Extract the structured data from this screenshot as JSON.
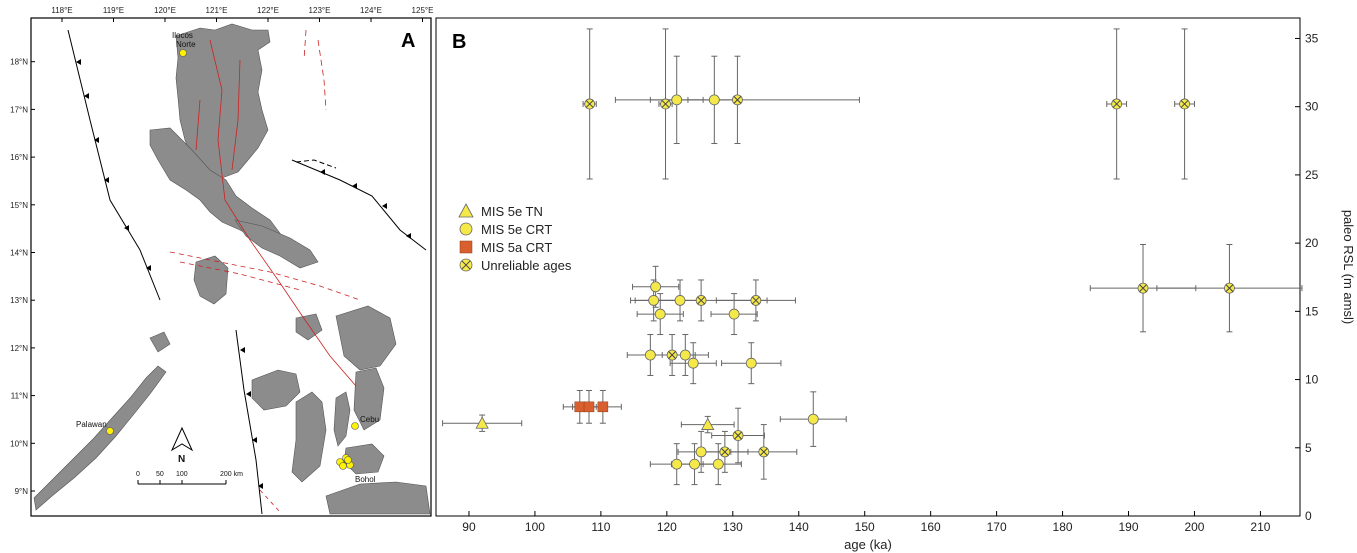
{
  "map_panel": {
    "panel_label": "A",
    "lon_ticks": [
      118,
      119,
      120,
      121,
      122,
      123,
      124,
      125
    ],
    "lat_ticks": [
      9,
      10,
      11,
      12,
      13,
      14,
      15,
      16,
      17,
      18
    ],
    "lon_suffix": "°E",
    "lat_suffix": "°N",
    "places": [
      "Ilocos Norte",
      "Palawan",
      "Cebu",
      "Bohol"
    ],
    "place_line1": "Ilocos",
    "place_line2": "Norte",
    "north_label": "N",
    "scale_ticks": [
      "0",
      "50",
      "100",
      "200 km"
    ],
    "colors": {
      "land": "#8c8c8c",
      "sea": "#ffffff",
      "fault": "#cc2222",
      "site": "#fff200"
    }
  },
  "chart_data": {
    "type": "scatter",
    "panel_label": "B",
    "xlabel": "age (ka)",
    "ylabel": "paleo RSL (m amsl)",
    "xlim": [
      85,
      216
    ],
    "ylim": [
      0,
      36.5
    ],
    "x_ticks": [
      90,
      100,
      110,
      120,
      130,
      140,
      150,
      160,
      170,
      180,
      190,
      200,
      210
    ],
    "y_ticks": [
      0,
      5,
      10,
      15,
      20,
      25,
      30,
      35
    ],
    "legend_position": "left-middle",
    "grid": false,
    "error_bar_color": "#666666",
    "series": [
      {
        "name": "MIS 5e TN",
        "marker": "triangle",
        "color": "#f5e94a",
        "points": [
          {
            "x": 92,
            "y": 6.8,
            "xerr": 6,
            "yerr": 0.6
          },
          {
            "x": 126.2,
            "y": 6.7,
            "xerr": 4,
            "yerr": 0.6
          }
        ]
      },
      {
        "name": "MIS 5e CRT",
        "marker": "circle",
        "color": "#f5e94a",
        "points": [
          {
            "x": 121.5,
            "y": 30.5,
            "xerr": 4,
            "yerr": 3.2
          },
          {
            "x": 127.2,
            "y": 30.5,
            "xerr": 4,
            "yerr": 3.2
          },
          {
            "x": 118.3,
            "y": 16.8,
            "xerr": 3.5,
            "yerr": 1.5
          },
          {
            "x": 118,
            "y": 15.8,
            "xerr": 3.5,
            "yerr": 1.5
          },
          {
            "x": 122,
            "y": 15.8,
            "xerr": 3.5,
            "yerr": 1.5
          },
          {
            "x": 119,
            "y": 14.8,
            "xerr": 3.5,
            "yerr": 1.5
          },
          {
            "x": 130.2,
            "y": 14.8,
            "xerr": 3.5,
            "yerr": 1.5
          },
          {
            "x": 117.5,
            "y": 11.8,
            "xerr": 3.5,
            "yerr": 1.5
          },
          {
            "x": 122.8,
            "y": 11.8,
            "xerr": 3.5,
            "yerr": 1.5
          },
          {
            "x": 124,
            "y": 11.2,
            "xerr": 3.5,
            "yerr": 1.5
          },
          {
            "x": 132.8,
            "y": 11.2,
            "xerr": 4.5,
            "yerr": 1.5
          },
          {
            "x": 142.2,
            "y": 7.1,
            "xerr": 5,
            "yerr": 2
          },
          {
            "x": 125.2,
            "y": 4.7,
            "xerr": 3.5,
            "yerr": 1.5
          },
          {
            "x": 121.5,
            "y": 3.8,
            "xerr": 4,
            "yerr": 1.5
          },
          {
            "x": 124.2,
            "y": 3.8,
            "xerr": 3.5,
            "yerr": 1.5
          },
          {
            "x": 127.8,
            "y": 3.8,
            "xerr": 3.5,
            "yerr": 1.5
          }
        ]
      },
      {
        "name": "MIS 5a CRT",
        "marker": "square",
        "color": "#d9602e",
        "points": [
          {
            "x": 106.8,
            "y": 8,
            "xerr": 2.5,
            "yerr": 1.2
          },
          {
            "x": 108.2,
            "y": 8,
            "xerr": 2.5,
            "yerr": 1.2
          },
          {
            "x": 110.3,
            "y": 8,
            "xerr": 2.8,
            "yerr": 1.2
          }
        ]
      },
      {
        "name": "Unreliable ages",
        "marker": "circle-x",
        "color": "#f5e94a",
        "points": [
          {
            "x": 108.3,
            "y": 30.2,
            "xerr": 1,
            "yerr": 5.5
          },
          {
            "x": 119.8,
            "y": 30.2,
            "xerr": 1,
            "yerr": 5.5
          },
          {
            "x": 130.7,
            "y": 30.5,
            "xerr": 18.5,
            "yerr": 3.2
          },
          {
            "x": 188.2,
            "y": 30.2,
            "xerr": 1.5,
            "yerr": 5.5
          },
          {
            "x": 198.5,
            "y": 30.2,
            "xerr": 1.5,
            "yerr": 5.5
          },
          {
            "x": 125.2,
            "y": 15.8,
            "xerr": 10,
            "yerr": 1.5
          },
          {
            "x": 133.5,
            "y": 15.8,
            "xerr": 6,
            "yerr": 1.5
          },
          {
            "x": 192.2,
            "y": 16.7,
            "xerr": 8,
            "yerr": 3.2
          },
          {
            "x": 205.3,
            "y": 16.7,
            "xerr": 11,
            "yerr": 3.2
          },
          {
            "x": 120.8,
            "y": 11.8,
            "xerr": 3.5,
            "yerr": 1.5
          },
          {
            "x": 130.8,
            "y": 5.9,
            "xerr": 4,
            "yerr": 2
          },
          {
            "x": 128.8,
            "y": 4.7,
            "xerr": 3.5,
            "yerr": 1.5
          },
          {
            "x": 134.7,
            "y": 4.7,
            "xerr": 5,
            "yerr": 2
          }
        ]
      }
    ]
  }
}
